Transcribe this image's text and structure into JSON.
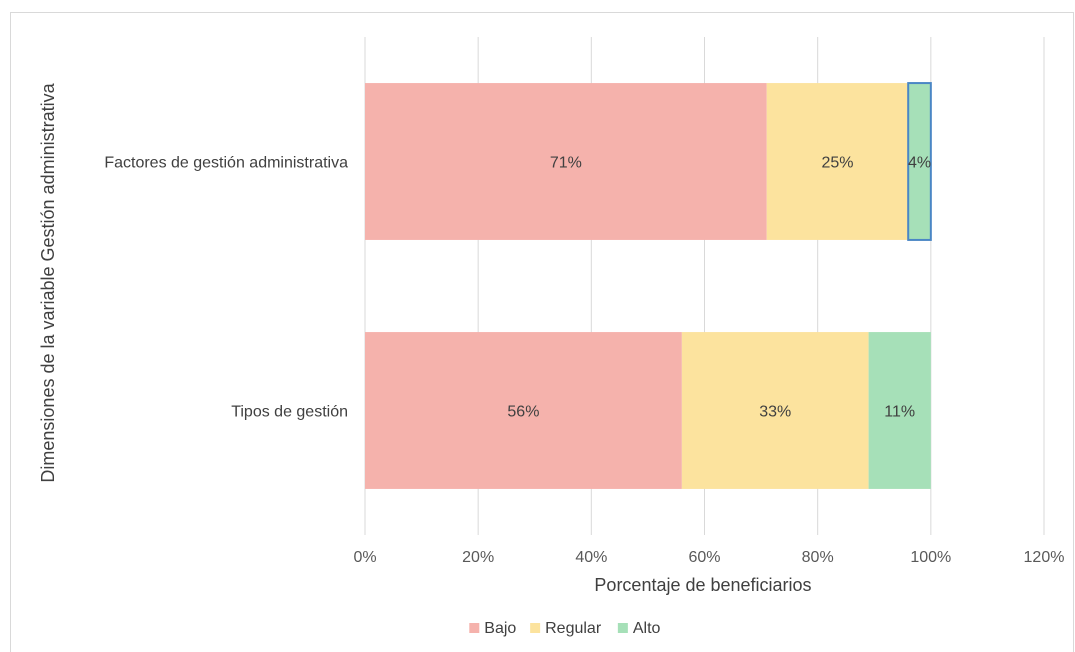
{
  "chart_data": {
    "type": "bar",
    "orientation": "horizontal",
    "stacked": true,
    "categories": [
      "Factores de gestión administrativa",
      "Tipos de gestión"
    ],
    "series": [
      {
        "name": "Bajo",
        "values": [
          71,
          56
        ],
        "labels": [
          "71%",
          "56%"
        ],
        "color": "#f5b2ac"
      },
      {
        "name": "Regular",
        "values": [
          25,
          33
        ],
        "labels": [
          "25%",
          "33%"
        ],
        "color": "#fce39e"
      },
      {
        "name": "Alto",
        "values": [
          4,
          11
        ],
        "labels": [
          "4%",
          "11%"
        ],
        "color": "#a6e0b8"
      }
    ],
    "xlabel": "Porcentaje de beneficiarios",
    "ylabel": "Dimensiones de la variable  Gestión administrativa",
    "xlim": [
      0,
      120
    ],
    "xticks": [
      "0%",
      "20%",
      "40%",
      "60%",
      "80%",
      "100%",
      "120%"
    ],
    "grid": true,
    "legend": "bottom",
    "highlight": {
      "category_index": 0,
      "series_index": 2,
      "color": "#4a86c5"
    }
  }
}
